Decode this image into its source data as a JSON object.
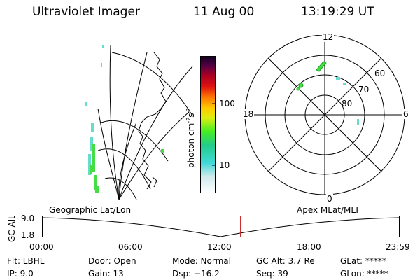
{
  "header": {
    "instrument": "Ultraviolet Imager",
    "date": "11 Aug 00",
    "time": "13:19:29 UT"
  },
  "colorbar": {
    "label": "photon cm",
    "label_sup1": "-2",
    "label_mid": "s",
    "label_sup2": "-1",
    "ticks": [
      "100",
      "10"
    ]
  },
  "polar_plot": {
    "mlt_labels": {
      "top": "12",
      "bottom": "0",
      "left": "18",
      "right": "6"
    },
    "lat_labels": [
      "60",
      "70",
      "80"
    ]
  },
  "timeline": {
    "left_label": "Geographic Lat/Lon",
    "right_label": "Apex MLat/MLT",
    "y_axis_label": "GC Alt",
    "y_ticks": [
      "9.0",
      "1.8"
    ],
    "x_ticks": [
      "00:00",
      "06:00",
      "12:00",
      "18:00",
      "23:59"
    ],
    "current_time_fraction": 0.555
  },
  "info": {
    "flt": "Flt: LBHL",
    "ip": "IP: 9.0",
    "door": "Door: Open",
    "gain": "Gain: 13",
    "mode": "Mode: Normal",
    "dsp": "Dsp: −16.2",
    "gc_alt": "GC Alt: 3.7 Re",
    "seq": "Seq: 39",
    "glat": "GLat: *****",
    "glon": "GLon: *****"
  },
  "colors": {
    "accent_marker": "#cc2222",
    "aurora_green": "#44dd44",
    "aurora_cyan": "#66ddcc"
  }
}
